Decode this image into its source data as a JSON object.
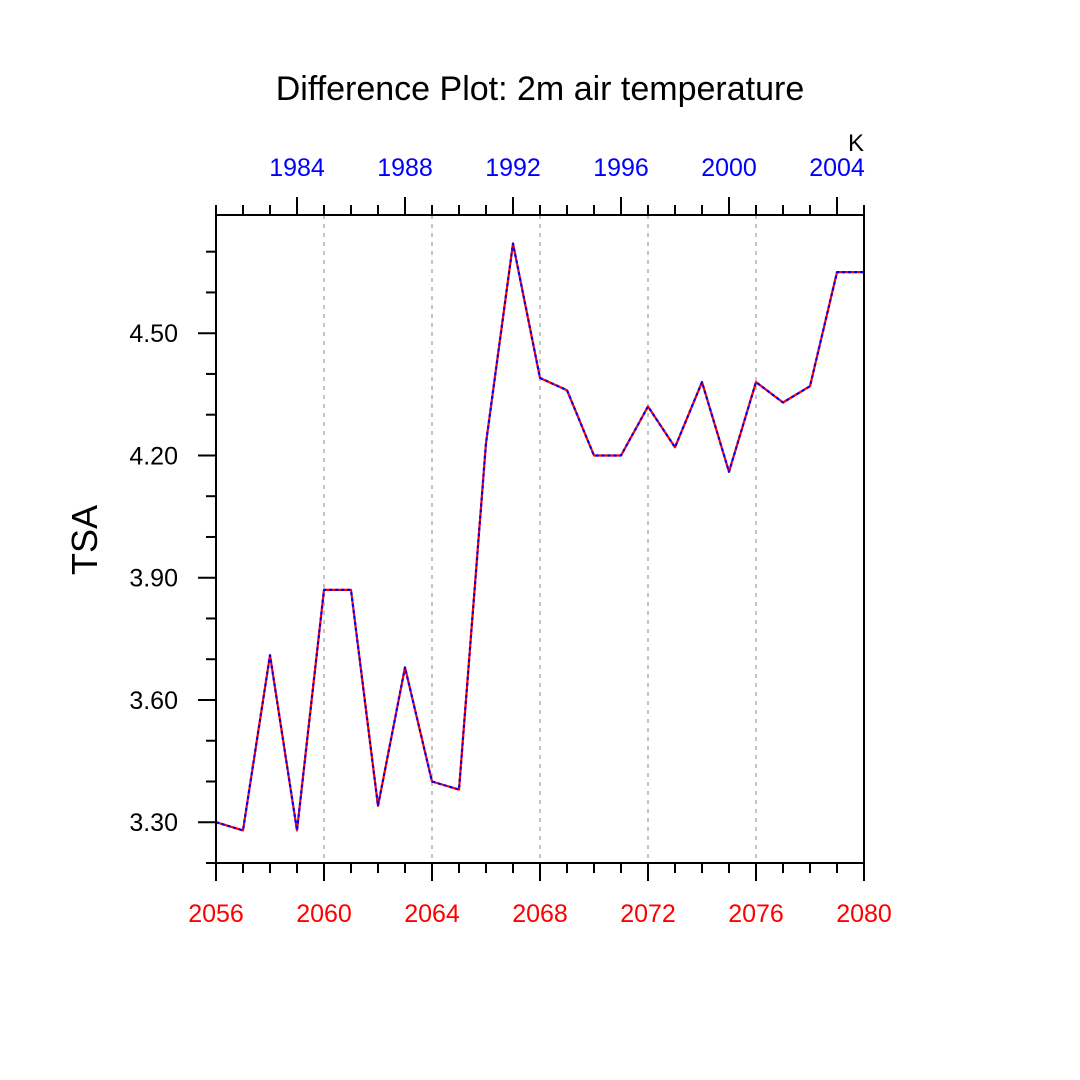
{
  "chart_data": {
    "type": "line",
    "title": "Difference Plot: 2m air temperature",
    "ylabel": "TSA",
    "units": "K",
    "xlim": [
      2056,
      2080
    ],
    "ylim": [
      3.2,
      4.79
    ],
    "yticks": [
      3.3,
      3.6,
      3.9,
      4.2,
      4.5
    ],
    "ytick_labels": [
      "3.30",
      "3.60",
      "3.90",
      "4.20",
      "4.50"
    ],
    "ytick_minor_step": 0.1,
    "xticks_bottom": [
      2056,
      2060,
      2064,
      2068,
      2072,
      2076,
      2080
    ],
    "xtick_labels_bottom": [
      "2056",
      "2060",
      "2064",
      "2068",
      "2072",
      "2076",
      "2080"
    ],
    "xticks_top_labels": [
      "1984",
      "1988",
      "1992",
      "1996",
      "2000",
      "2004"
    ],
    "xticks_top_positions": [
      2059,
      2063,
      2067,
      2071,
      2075,
      2079
    ],
    "top_axis_offset_years": 75,
    "bottom_axis_color": "#ff0000",
    "top_axis_color": "#0000ff",
    "grid": "vertical dotted at major bottom ticks",
    "series": [
      {
        "name": "TSA difference",
        "x": [
          2056,
          2057,
          2058,
          2059,
          2060,
          2061,
          2062,
          2063,
          2064,
          2065,
          2066,
          2067,
          2068,
          2069,
          2070,
          2071,
          2072,
          2073,
          2074,
          2075,
          2076,
          2077,
          2078,
          2079,
          2080
        ],
        "values": [
          3.3,
          3.28,
          3.71,
          3.28,
          3.87,
          3.87,
          3.34,
          3.68,
          3.4,
          3.38,
          4.23,
          4.72,
          4.39,
          4.36,
          4.2,
          4.2,
          4.32,
          4.22,
          4.38,
          4.16,
          4.38,
          4.33,
          4.37,
          4.65,
          4.65
        ],
        "line_color_1": "#ff0000",
        "line_color_2": "#0000ff"
      }
    ]
  }
}
